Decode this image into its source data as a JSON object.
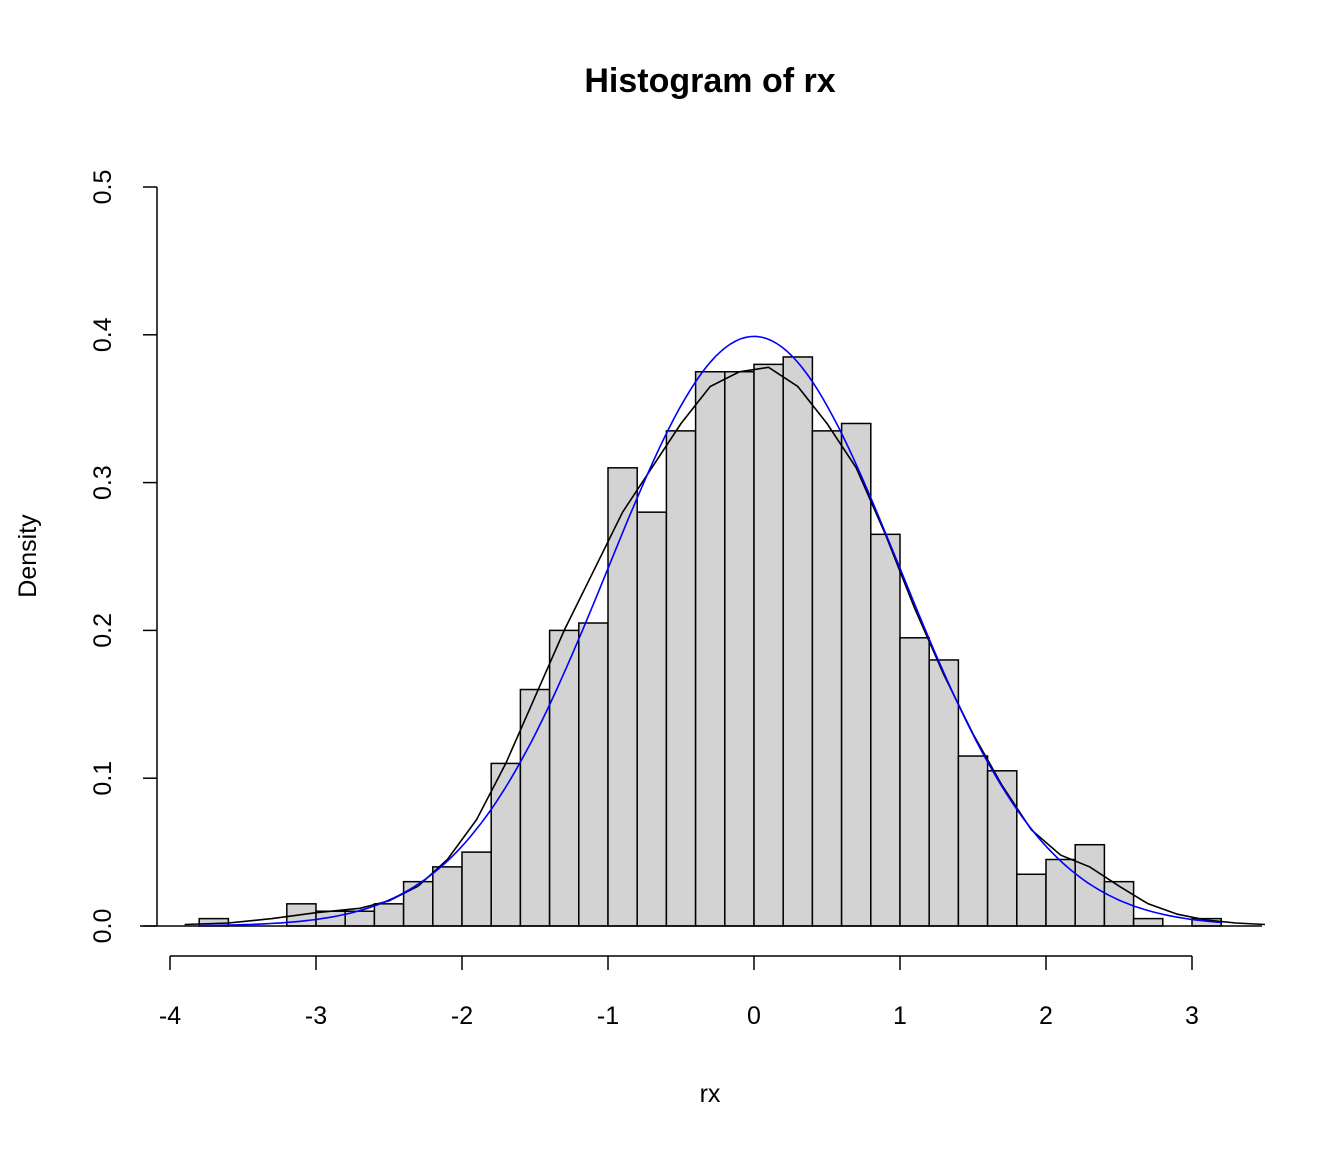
{
  "chart_data": {
    "type": "bar",
    "title": "Histogram of rx",
    "xlabel": "rx",
    "ylabel": "Density",
    "xlim": [
      -4,
      3.5
    ],
    "ylim": [
      0,
      0.5
    ],
    "x_ticks": [
      -4,
      -3,
      -2,
      -1,
      0,
      1,
      2,
      3
    ],
    "x_tick_labels": [
      "-4",
      "-3",
      "-2",
      "-1",
      "0",
      "1",
      "2",
      "3"
    ],
    "y_ticks": [
      0,
      0.1,
      0.2,
      0.3,
      0.4,
      0.5
    ],
    "y_tick_labels": [
      "0.0",
      "0.1",
      "0.2",
      "0.3",
      "0.4",
      "0.5"
    ],
    "bin_width": 0.2,
    "bins": [
      {
        "start": -3.8,
        "end": -3.6,
        "density": 0.005
      },
      {
        "start": -3.6,
        "end": -3.4,
        "density": 0.0
      },
      {
        "start": -3.4,
        "end": -3.2,
        "density": 0.0
      },
      {
        "start": -3.2,
        "end": -3.0,
        "density": 0.015
      },
      {
        "start": -3.0,
        "end": -2.8,
        "density": 0.01
      },
      {
        "start": -2.8,
        "end": -2.6,
        "density": 0.01
      },
      {
        "start": -2.6,
        "end": -2.4,
        "density": 0.015
      },
      {
        "start": -2.4,
        "end": -2.2,
        "density": 0.03
      },
      {
        "start": -2.2,
        "end": -2.0,
        "density": 0.04
      },
      {
        "start": -2.0,
        "end": -1.8,
        "density": 0.05
      },
      {
        "start": -1.8,
        "end": -1.6,
        "density": 0.11
      },
      {
        "start": -1.6,
        "end": -1.4,
        "density": 0.16
      },
      {
        "start": -1.4,
        "end": -1.2,
        "density": 0.2
      },
      {
        "start": -1.2,
        "end": -1.0,
        "density": 0.205
      },
      {
        "start": -1.0,
        "end": -0.8,
        "density": 0.31
      },
      {
        "start": -0.8,
        "end": -0.6,
        "density": 0.28
      },
      {
        "start": -0.6,
        "end": -0.4,
        "density": 0.335
      },
      {
        "start": -0.4,
        "end": -0.2,
        "density": 0.375
      },
      {
        "start": -0.2,
        "end": 0.0,
        "density": 0.375
      },
      {
        "start": 0.0,
        "end": 0.2,
        "density": 0.38
      },
      {
        "start": 0.2,
        "end": 0.4,
        "density": 0.385
      },
      {
        "start": 0.4,
        "end": 0.6,
        "density": 0.335
      },
      {
        "start": 0.6,
        "end": 0.8,
        "density": 0.34
      },
      {
        "start": 0.8,
        "end": 1.0,
        "density": 0.265
      },
      {
        "start": 1.0,
        "end": 1.2,
        "density": 0.195
      },
      {
        "start": 1.2,
        "end": 1.4,
        "density": 0.18
      },
      {
        "start": 1.4,
        "end": 1.6,
        "density": 0.115
      },
      {
        "start": 1.6,
        "end": 1.8,
        "density": 0.105
      },
      {
        "start": 1.8,
        "end": 2.0,
        "density": 0.035
      },
      {
        "start": 2.0,
        "end": 2.2,
        "density": 0.045
      },
      {
        "start": 2.2,
        "end": 2.4,
        "density": 0.055
      },
      {
        "start": 2.4,
        "end": 2.6,
        "density": 0.03
      },
      {
        "start": 2.6,
        "end": 2.8,
        "density": 0.005
      },
      {
        "start": 2.8,
        "end": 3.0,
        "density": 0.0
      },
      {
        "start": 3.0,
        "end": 3.2,
        "density": 0.005
      }
    ],
    "curves": [
      {
        "color": "#000000",
        "points": [
          [
            -3.9,
            0.001
          ],
          [
            -3.6,
            0.002
          ],
          [
            -3.3,
            0.005
          ],
          [
            -3.0,
            0.009
          ],
          [
            -2.7,
            0.012
          ],
          [
            -2.5,
            0.017
          ],
          [
            -2.3,
            0.027
          ],
          [
            -2.1,
            0.045
          ],
          [
            -1.9,
            0.072
          ],
          [
            -1.7,
            0.11
          ],
          [
            -1.5,
            0.155
          ],
          [
            -1.3,
            0.2
          ],
          [
            -1.1,
            0.24
          ],
          [
            -0.9,
            0.28
          ],
          [
            -0.7,
            0.31
          ],
          [
            -0.5,
            0.34
          ],
          [
            -0.3,
            0.365
          ],
          [
            -0.1,
            0.375
          ],
          [
            0.1,
            0.378
          ],
          [
            0.3,
            0.365
          ],
          [
            0.5,
            0.34
          ],
          [
            0.7,
            0.31
          ],
          [
            0.9,
            0.265
          ],
          [
            1.1,
            0.215
          ],
          [
            1.3,
            0.17
          ],
          [
            1.5,
            0.13
          ],
          [
            1.7,
            0.095
          ],
          [
            1.9,
            0.065
          ],
          [
            2.1,
            0.048
          ],
          [
            2.3,
            0.04
          ],
          [
            2.5,
            0.027
          ],
          [
            2.7,
            0.015
          ],
          [
            2.9,
            0.008
          ],
          [
            3.1,
            0.004
          ],
          [
            3.3,
            0.002
          ],
          [
            3.5,
            0.001
          ]
        ]
      },
      {
        "color": "#0000ff",
        "normal": {
          "mean": 0,
          "sd": 1
        },
        "x_range": [
          -3.8,
          3.2
        ]
      }
    ]
  }
}
